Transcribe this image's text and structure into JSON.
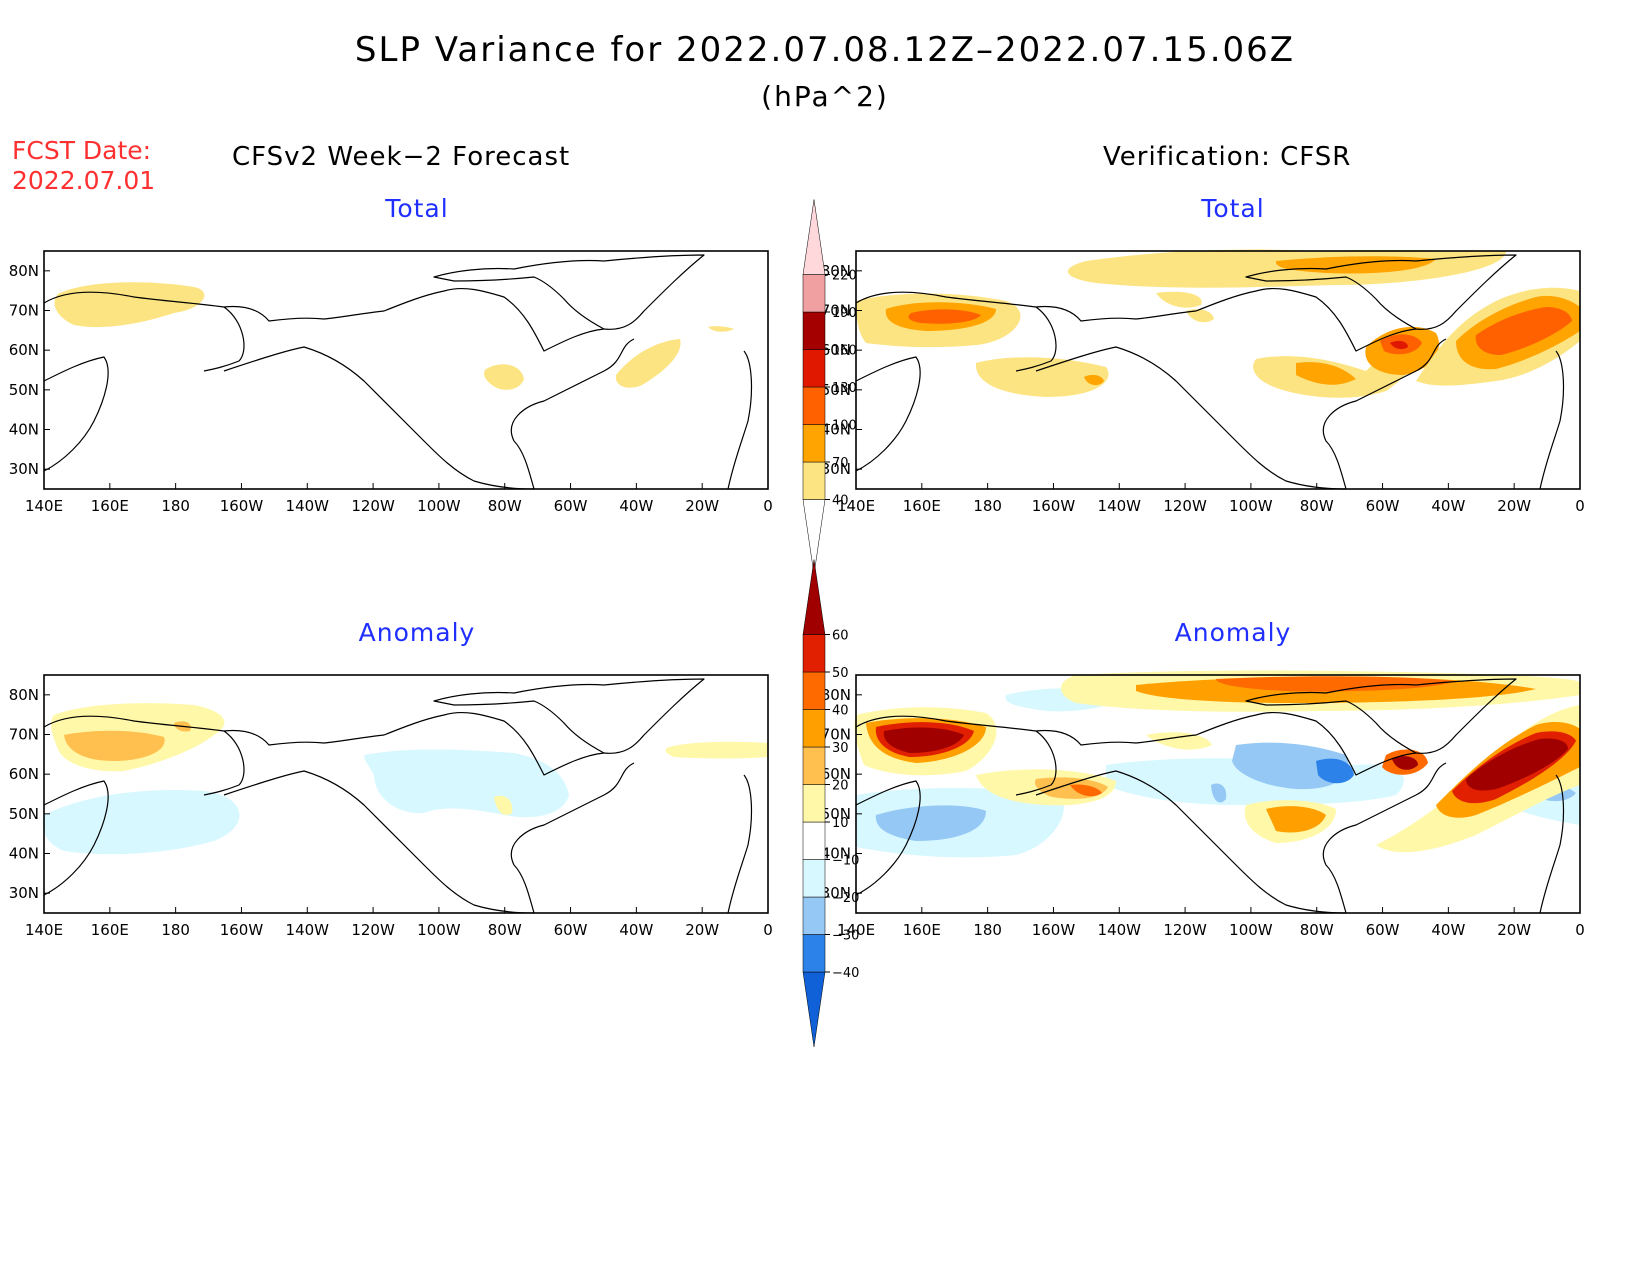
{
  "header": {
    "title": "SLP Variance for 2022.07.08.12Z–2022.07.15.06Z",
    "units": "(hPa^2)",
    "fcst_label": "FCST Date:",
    "fcst_date": "2022.07.01"
  },
  "columns": {
    "left": "CFSv2 Week−2 Forecast",
    "right": "Verification: CFSR"
  },
  "panels": {
    "top_left": "Total",
    "top_right": "Total",
    "bottom_left": "Anomaly",
    "bottom_right": "Anomaly"
  },
  "axes": {
    "lon_labels": [
      "140E",
      "160E",
      "180",
      "160W",
      "140W",
      "120W",
      "100W",
      "80W",
      "60W",
      "40W",
      "20W",
      "0"
    ],
    "lat_labels": [
      "80N",
      "70N",
      "60N",
      "50N",
      "40N",
      "30N"
    ],
    "lon_range": [
      140,
      360
    ],
    "lat_range": [
      25,
      85
    ]
  },
  "total_colorbar": {
    "levels": [
      "40",
      "70",
      "100",
      "130",
      "160",
      "190",
      "220"
    ],
    "colors": [
      "#ffffff",
      "#fde482",
      "#ffa400",
      "#ff6000",
      "#e01800",
      "#a50000",
      "#f0a0a0",
      "#ffd8dc"
    ]
  },
  "anomaly_colorbar": {
    "levels": [
      "−40",
      "−30",
      "−20",
      "−10",
      "10",
      "20",
      "30",
      "40",
      "50",
      "60"
    ],
    "colors": [
      "#1060d8",
      "#2c82e8",
      "#96c8f5",
      "#d8f8ff",
      "#ffffff",
      "#fff8a8",
      "#ffc050",
      "#ffa000",
      "#ff6a00",
      "#e02000",
      "#a00000"
    ]
  },
  "colors": {
    "title_text": "#000000",
    "fcst_text": "#ff3030",
    "panel_title_text": "#1f2fff"
  }
}
